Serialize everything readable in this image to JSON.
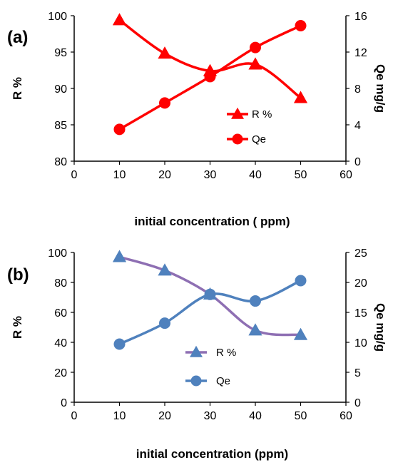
{
  "chart_data": [
    {
      "type": "line",
      "panel_label": "(a)",
      "xlabel": "initial concentration ( ppm)",
      "ylabel": "R %",
      "y2label": "Qe mg/g",
      "xlim": [
        0,
        60
      ],
      "xticks": [
        0,
        10,
        20,
        30,
        40,
        50,
        60
      ],
      "ylim": [
        80,
        100
      ],
      "yticks": [
        80,
        85,
        90,
        95,
        100
      ],
      "y2lim": [
        0,
        16
      ],
      "y2ticks": [
        0,
        4,
        8,
        12,
        16
      ],
      "grid": false,
      "legend_position": "center-right",
      "series": [
        {
          "name": "R %",
          "axis": "left",
          "marker": "triangle",
          "color": "#ff0000",
          "x": [
            10,
            20,
            30,
            40,
            50
          ],
          "values": [
            99.4,
            94.8,
            92.4,
            93.3,
            88.7
          ]
        },
        {
          "name": "Qe",
          "axis": "right",
          "marker": "circle",
          "color": "#ff0000",
          "x": [
            10,
            20,
            30,
            40,
            50
          ],
          "values": [
            3.5,
            6.4,
            9.3,
            12.5,
            14.9
          ]
        }
      ]
    },
    {
      "type": "line",
      "panel_label": "(b)",
      "xlabel": "initial concentration  (ppm)",
      "ylabel": "R %",
      "y2label": "Qe  mg/g",
      "xlim": [
        0,
        60
      ],
      "xticks": [
        0,
        10,
        20,
        30,
        40,
        50,
        60
      ],
      "ylim": [
        0,
        100
      ],
      "yticks": [
        0,
        20,
        40,
        60,
        80,
        100
      ],
      "y2lim": [
        0,
        25
      ],
      "y2ticks": [
        0,
        5,
        10,
        15,
        20,
        25
      ],
      "grid": false,
      "legend_position": "center",
      "series": [
        {
          "name": "R %",
          "axis": "left",
          "marker": "triangle",
          "color": "#8e6fb3",
          "marker_color": "#4f81bd",
          "x": [
            10,
            20,
            30,
            40,
            50
          ],
          "values": [
            97,
            88,
            72,
            48,
            45
          ]
        },
        {
          "name": "Qe",
          "axis": "right",
          "marker": "circle",
          "color": "#4f81bd",
          "x": [
            10,
            20,
            30,
            40,
            50
          ],
          "values": [
            9.7,
            13.2,
            18.0,
            16.9,
            20.3
          ]
        }
      ]
    }
  ]
}
